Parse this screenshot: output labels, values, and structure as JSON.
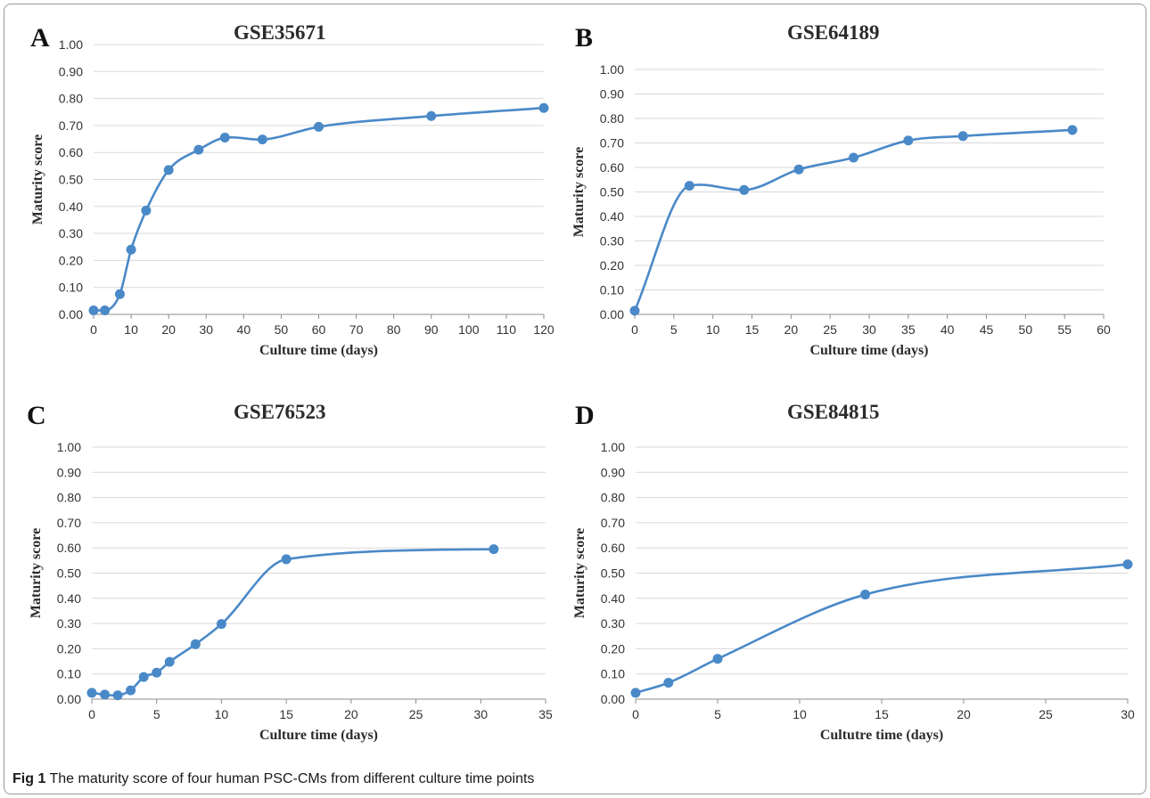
{
  "caption": {
    "label": "Fig 1",
    "text": "The maturity score of four human PSC-CMs from different culture time points"
  },
  "colors": {
    "series": "#4a89c8",
    "grid": "#d9d9d9",
    "axis": "#8c8c8c"
  },
  "chart_data": [
    {
      "panel": "A",
      "type": "line",
      "title": "GSE35671",
      "xlabel": "Culture time (days)",
      "ylabel": "Maturity score",
      "xlim": [
        0,
        120
      ],
      "xticks": [
        0,
        10,
        20,
        30,
        40,
        50,
        60,
        70,
        80,
        90,
        100,
        110,
        120
      ],
      "ylim": [
        0,
        1
      ],
      "yticks": [
        "0.00",
        "0.10",
        "0.20",
        "0.30",
        "0.40",
        "0.50",
        "0.60",
        "0.70",
        "0.80",
        "0.90",
        "1.00"
      ],
      "grid": "horizontal",
      "x": [
        0,
        3,
        7,
        10,
        14,
        20,
        28,
        35,
        45,
        60,
        90,
        120
      ],
      "y": [
        0.015,
        0.015,
        0.075,
        0.24,
        0.385,
        0.535,
        0.61,
        0.655,
        0.648,
        0.695,
        0.735,
        0.765
      ]
    },
    {
      "panel": "B",
      "type": "line",
      "title": "GSE64189",
      "xlabel": "Culture time (days)",
      "ylabel": "Maturity score",
      "xlim": [
        0,
        60
      ],
      "xticks": [
        0,
        5,
        10,
        15,
        20,
        25,
        30,
        35,
        40,
        45,
        50,
        55,
        60
      ],
      "ylim": [
        0,
        1
      ],
      "yticks": [
        "0.00",
        "0.10",
        "0.20",
        "0.30",
        "0.40",
        "0.50",
        "0.60",
        "0.70",
        "0.80",
        "0.90",
        "1.00"
      ],
      "grid": "horizontal",
      "x": [
        0,
        7,
        14,
        21,
        28,
        35,
        42,
        56
      ],
      "y": [
        0.015,
        0.525,
        0.508,
        0.592,
        0.64,
        0.71,
        0.728,
        0.753
      ]
    },
    {
      "panel": "C",
      "type": "line",
      "title": "GSE76523",
      "xlabel": "Culture time (days)",
      "ylabel": "Maturity score",
      "xlim": [
        0,
        35
      ],
      "xticks": [
        0,
        5,
        10,
        15,
        20,
        25,
        30,
        35
      ],
      "ylim": [
        0,
        1
      ],
      "yticks": [
        "0.00",
        "0.10",
        "0.20",
        "0.30",
        "0.40",
        "0.50",
        "0.60",
        "0.70",
        "0.80",
        "0.90",
        "1.00"
      ],
      "grid": "horizontal",
      "x": [
        0,
        1,
        2,
        3,
        4,
        5,
        6,
        8,
        10,
        15,
        31
      ],
      "y": [
        0.025,
        0.018,
        0.015,
        0.035,
        0.088,
        0.105,
        0.148,
        0.218,
        0.298,
        0.555,
        0.595
      ]
    },
    {
      "panel": "D",
      "type": "line",
      "title": "GSE84815",
      "xlabel": "Cultutre time (days)",
      "ylabel": "Maturity score",
      "xlim": [
        0,
        30
      ],
      "xticks": [
        0,
        5,
        10,
        15,
        20,
        25,
        30
      ],
      "ylim": [
        0,
        1
      ],
      "yticks": [
        "0.00",
        "0.10",
        "0.20",
        "0.30",
        "0.40",
        "0.50",
        "0.60",
        "0.70",
        "0.80",
        "0.90",
        "1.00"
      ],
      "grid": "horizontal",
      "x": [
        0,
        2,
        5,
        14,
        30
      ],
      "y": [
        0.025,
        0.065,
        0.16,
        0.415,
        0.535
      ]
    }
  ]
}
